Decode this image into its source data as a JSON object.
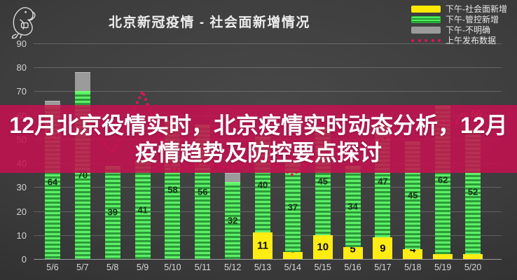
{
  "header": {
    "title": "北京新冠疫情 - 社会面新增情况"
  },
  "logo": {
    "icon": "parrot-sketch-icon"
  },
  "legend": {
    "items": [
      {
        "label": "下午-社会面新增",
        "swatch": "bar",
        "color": "#ffe900"
      },
      {
        "label": "下午-管控新增",
        "swatch": "bar-striped",
        "color": "#3fdc4e"
      },
      {
        "label": "下午-不明确",
        "swatch": "bar",
        "color": "#9b9b9b"
      },
      {
        "label": "上午发布数据",
        "swatch": "dotted-line",
        "color": "#e31455"
      }
    ]
  },
  "overlay": {
    "text": "12月北京役情实时，北京疫情实时动态分析，12月疫情趋势及防控要点探讨",
    "background": "#c61050",
    "text_color": "#ffffff"
  },
  "chart_data": {
    "type": "bar",
    "stacked": true,
    "title": "北京新冠疫情 - 社会面新增情况",
    "categories": [
      "5/6",
      "5/7",
      "5/8",
      "5/9",
      "5/10",
      "5/11",
      "5/12",
      "5/13",
      "5/14",
      "5/15",
      "5/16",
      "5/17",
      "5/18",
      "5/19",
      "5/20"
    ],
    "series": [
      {
        "name": "下午-社会面新增",
        "type": "bar",
        "color": "#ffec12",
        "values": [
          0,
          0,
          0,
          0,
          0,
          0,
          0,
          11,
          3,
          10,
          5,
          9,
          4,
          2,
          2
        ]
      },
      {
        "name": "下午-管控新增",
        "type": "bar",
        "color": "#3fdc4e",
        "values": [
          64,
          70,
          39,
          41,
          58,
          56,
          32,
          40,
          37,
          45,
          34,
          47,
          45,
          62,
          52
        ]
      },
      {
        "name": "下午-不明确",
        "type": "bar",
        "color": "#9b9b9b",
        "values": [
          2,
          8,
          0,
          0,
          0,
          0,
          4,
          0,
          0,
          0,
          0,
          0,
          0,
          0,
          0
        ]
      },
      {
        "name": "上午发布数据",
        "type": "line",
        "line_style": "dotted",
        "color": "#e31455",
        "values": [
          50,
          60,
          44,
          70,
          37,
          40,
          38,
          42,
          35,
          45,
          43,
          50,
          54,
          57,
          56
        ],
        "end_annotation": {
          "label": "56",
          "color": "#f15c38"
        }
      }
    ],
    "ylim": [
      0,
      90
    ],
    "yticks": [
      0,
      10,
      20,
      30,
      40,
      50,
      60,
      70,
      80,
      90
    ],
    "grid": true,
    "legend_position": "top-right",
    "xlabel": "",
    "ylabel": ""
  }
}
